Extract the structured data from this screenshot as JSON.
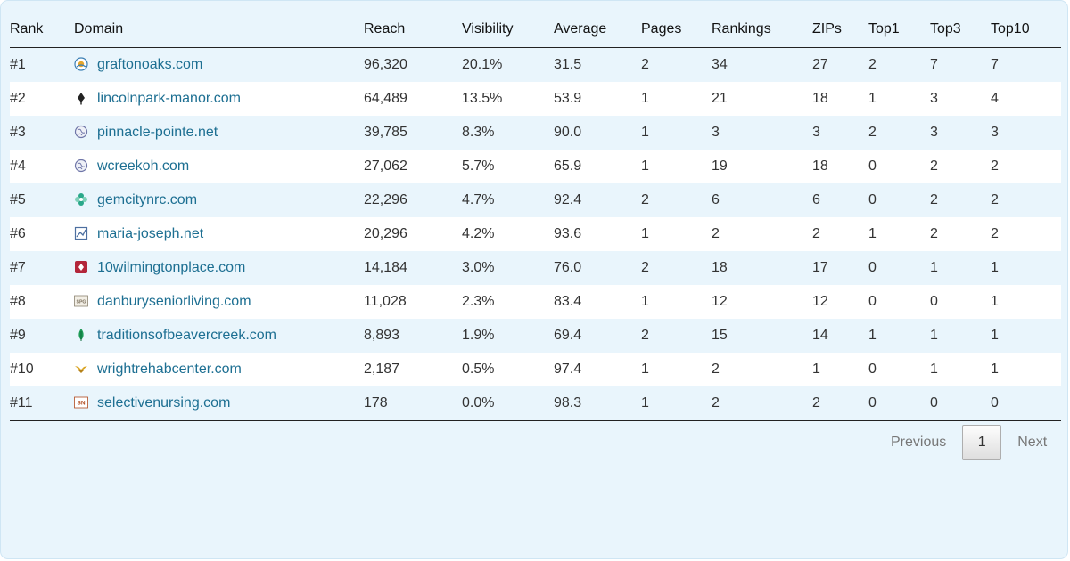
{
  "table": {
    "headers": {
      "rank": "Rank",
      "domain": "Domain",
      "reach": "Reach",
      "visibility": "Visibility",
      "average": "Average",
      "pages": "Pages",
      "rankings": "Rankings",
      "zips": "ZIPs",
      "top1": "Top1",
      "top3": "Top3",
      "top10": "Top10"
    },
    "rows": [
      {
        "rank": "#1",
        "domain": "graftonoaks.com",
        "icon": "sun-favicon-icon",
        "reach": "96,320",
        "visibility": "20.1%",
        "average": "31.5",
        "pages": "2",
        "rankings": "34",
        "zips": "27",
        "top1": "2",
        "top3": "7",
        "top10": "7"
      },
      {
        "rank": "#2",
        "domain": "lincolnpark-manor.com",
        "icon": "leaf-favicon-icon",
        "reach": "64,489",
        "visibility": "13.5%",
        "average": "53.9",
        "pages": "1",
        "rankings": "21",
        "zips": "18",
        "top1": "1",
        "top3": "3",
        "top10": "4"
      },
      {
        "rank": "#3",
        "domain": "pinnacle-pointe.net",
        "icon": "globe-icon",
        "reach": "39,785",
        "visibility": "8.3%",
        "average": "90.0",
        "pages": "1",
        "rankings": "3",
        "zips": "3",
        "top1": "2",
        "top3": "3",
        "top10": "3"
      },
      {
        "rank": "#4",
        "domain": "wcreekoh.com",
        "icon": "globe-icon",
        "reach": "27,062",
        "visibility": "5.7%",
        "average": "65.9",
        "pages": "1",
        "rankings": "19",
        "zips": "18",
        "top1": "0",
        "top3": "2",
        "top10": "2"
      },
      {
        "rank": "#5",
        "domain": "gemcitynrc.com",
        "icon": "flower-favicon-icon",
        "reach": "22,296",
        "visibility": "4.7%",
        "average": "92.4",
        "pages": "2",
        "rankings": "6",
        "zips": "6",
        "top1": "0",
        "top3": "2",
        "top10": "2"
      },
      {
        "rank": "#6",
        "domain": "maria-joseph.net",
        "icon": "image-favicon-icon",
        "reach": "20,296",
        "visibility": "4.2%",
        "average": "93.6",
        "pages": "1",
        "rankings": "2",
        "zips": "2",
        "top1": "1",
        "top3": "2",
        "top10": "2"
      },
      {
        "rank": "#7",
        "domain": "10wilmingtonplace.com",
        "icon": "red-badge-favicon-icon",
        "reach": "14,184",
        "visibility": "3.0%",
        "average": "76.0",
        "pages": "2",
        "rankings": "18",
        "zips": "17",
        "top1": "0",
        "top3": "1",
        "top10": "1"
      },
      {
        "rank": "#8",
        "domain": "danburyseniorliving.com",
        "icon": "spg-favicon-icon",
        "iconText": "SPG",
        "reach": "11,028",
        "visibility": "2.3%",
        "average": "83.4",
        "pages": "1",
        "rankings": "12",
        "zips": "12",
        "top1": "0",
        "top3": "0",
        "top10": "1"
      },
      {
        "rank": "#9",
        "domain": "traditionsofbeavercreek.com",
        "icon": "green-leaf-favicon-icon",
        "reach": "8,893",
        "visibility": "1.9%",
        "average": "69.4",
        "pages": "2",
        "rankings": "15",
        "zips": "14",
        "top1": "1",
        "top3": "1",
        "top10": "1"
      },
      {
        "rank": "#10",
        "domain": "wrightrehabcenter.com",
        "icon": "wings-favicon-icon",
        "reach": "2,187",
        "visibility": "0.5%",
        "average": "97.4",
        "pages": "1",
        "rankings": "2",
        "zips": "1",
        "top1": "0",
        "top3": "1",
        "top10": "1"
      },
      {
        "rank": "#11",
        "domain": "selectivenursing.com",
        "icon": "sn-favicon-icon",
        "iconText": "SN",
        "reach": "178",
        "visibility": "0.0%",
        "average": "98.3",
        "pages": "1",
        "rankings": "2",
        "zips": "2",
        "top1": "0",
        "top3": "0",
        "top10": "0"
      }
    ]
  },
  "pagination": {
    "previous": "Previous",
    "current": "1",
    "next": "Next"
  },
  "colors": {
    "panel_bg": "#e9f5fc",
    "link": "#1d6f92"
  }
}
